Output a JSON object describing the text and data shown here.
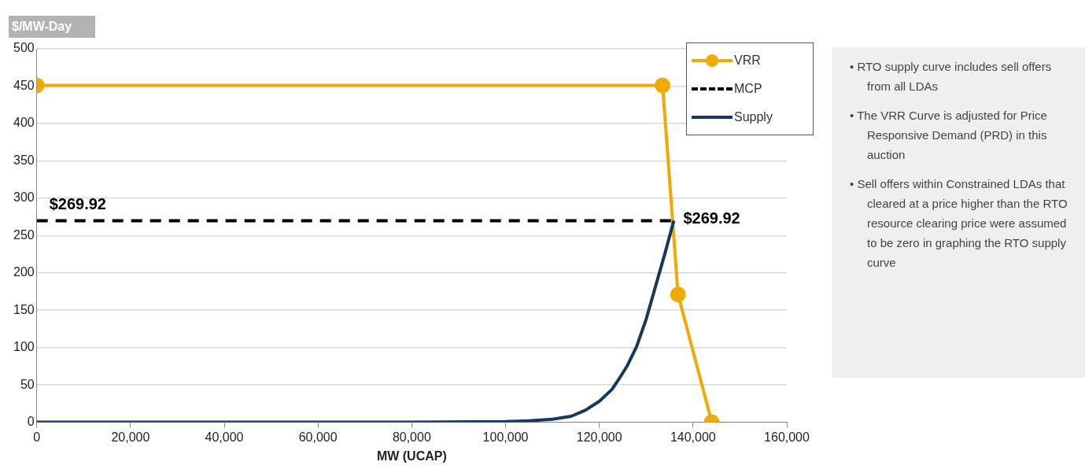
{
  "chart_data": {
    "type": "line",
    "xlabel": "MW (UCAP)",
    "ylabel": "$/MW-Day",
    "xlim": [
      0,
      160000
    ],
    "xticks": [
      0,
      {
        "value": 20000,
        "label": "20,000"
      },
      {
        "value": 40000,
        "label": "40,000"
      },
      {
        "value": 60000,
        "label": "60,000"
      },
      {
        "value": 80000,
        "label": "80,000"
      },
      {
        "value": 100000,
        "label": "100,000"
      },
      {
        "value": 120000,
        "label": "120,000"
      },
      {
        "value": 140000,
        "label": "140,000"
      },
      {
        "value": 160000,
        "label": "160,000"
      }
    ],
    "ylim": [
      0,
      500
    ],
    "yticks": [
      0,
      50,
      100,
      150,
      200,
      250,
      300,
      350,
      400,
      450,
      500
    ],
    "grid": "y",
    "legend": "top right",
    "series": [
      {
        "name": "VRR",
        "color": "#f2a900",
        "marker": "circle",
        "line_style": "solid",
        "x": [
          0,
          133500,
          136800,
          144000
        ],
        "values": [
          451,
          451,
          171,
          0
        ]
      },
      {
        "name": "MCP",
        "color": "#000000",
        "marker": "none",
        "line_style": "dashed",
        "x": [
          0,
          135900
        ],
        "values": [
          269.92,
          269.92
        ]
      },
      {
        "name": "Supply",
        "color": "#17375e",
        "marker": "none",
        "line_style": "solid",
        "x": [
          0,
          80000,
          100000,
          105000,
          110000,
          114000,
          117000,
          120000,
          122700,
          124000,
          126000,
          128000,
          130000,
          132000,
          134000,
          135900
        ],
        "values": [
          0,
          0,
          1,
          2,
          4,
          8,
          16,
          28,
          44,
          56,
          76,
          102,
          138,
          182,
          226,
          269.92
        ]
      }
    ],
    "annotations": [
      {
        "text": "$269.92",
        "x": 0,
        "y": 269.92
      },
      {
        "text": "$269.92",
        "x": 135900,
        "y": 269.92
      },
      "• RTO supply curve includes sell offers from all LDAs",
      "• The VRR Curve is adjusted for Price Responsive Demand (PRD) in this auction",
      "• Sell offers within Constrained LDAs that cleared at a price higher than the RTO resource clearing price were assumed to be zero in graphing the RTO supply curve"
    ]
  }
}
